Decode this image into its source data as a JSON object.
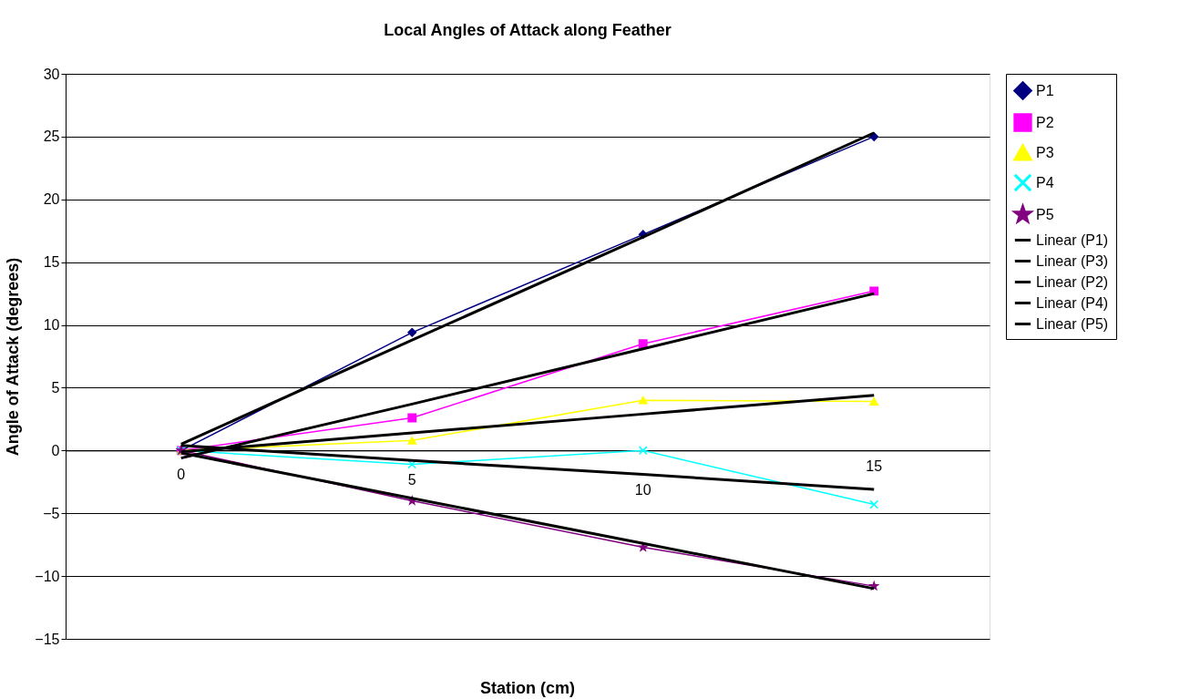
{
  "chart_data": {
    "type": "line",
    "title": "Local Angles of Attack along Feather",
    "xlabel": "Station (cm)",
    "ylabel": "Angle of Attack (degrees)",
    "categories": [
      "0",
      "5",
      "10",
      "15"
    ],
    "ylim": [
      -15,
      30
    ],
    "yticks": [
      -15,
      -10,
      -5,
      0,
      5,
      10,
      15,
      20,
      25,
      30
    ],
    "grid": "y",
    "legend": "right",
    "series": [
      {
        "name": "P1",
        "color": "#000080",
        "marker": "diamond",
        "values": [
          0,
          9.4,
          17.2,
          25
        ]
      },
      {
        "name": "P2",
        "color": "#ff00ff",
        "marker": "square",
        "values": [
          0,
          2.6,
          8.5,
          12.7
        ]
      },
      {
        "name": "P3",
        "color": "#ffff00",
        "marker": "triangle",
        "values": [
          0,
          0.8,
          4.0,
          3.9
        ]
      },
      {
        "name": "P4",
        "color": "#00ffff",
        "marker": "cross",
        "values": [
          0,
          -1.1,
          0,
          -4.3
        ]
      },
      {
        "name": "P5",
        "color": "#800080",
        "marker": "star",
        "values": [
          0,
          -4.0,
          -7.7,
          -10.8
        ]
      },
      {
        "name": "Linear (P1)",
        "color": "#000000",
        "marker": "none",
        "values": [
          0.5,
          8.8,
          17.0,
          25.3
        ]
      },
      {
        "name": "Linear (P3)",
        "color": "#000000",
        "marker": "none",
        "values": [
          -0.1,
          1.4,
          2.9,
          4.4
        ]
      },
      {
        "name": "Linear (P2)",
        "color": "#000000",
        "marker": "none",
        "values": [
          -0.6,
          3.7,
          8.1,
          12.5
        ]
      },
      {
        "name": "Linear (P4)",
        "color": "#000000",
        "marker": "none",
        "values": [
          0.4,
          -0.8,
          -1.9,
          -3.1
        ]
      },
      {
        "name": "Linear (P5)",
        "color": "#000000",
        "marker": "none",
        "values": [
          -0.2,
          -3.8,
          -7.4,
          -11.0
        ]
      }
    ]
  }
}
